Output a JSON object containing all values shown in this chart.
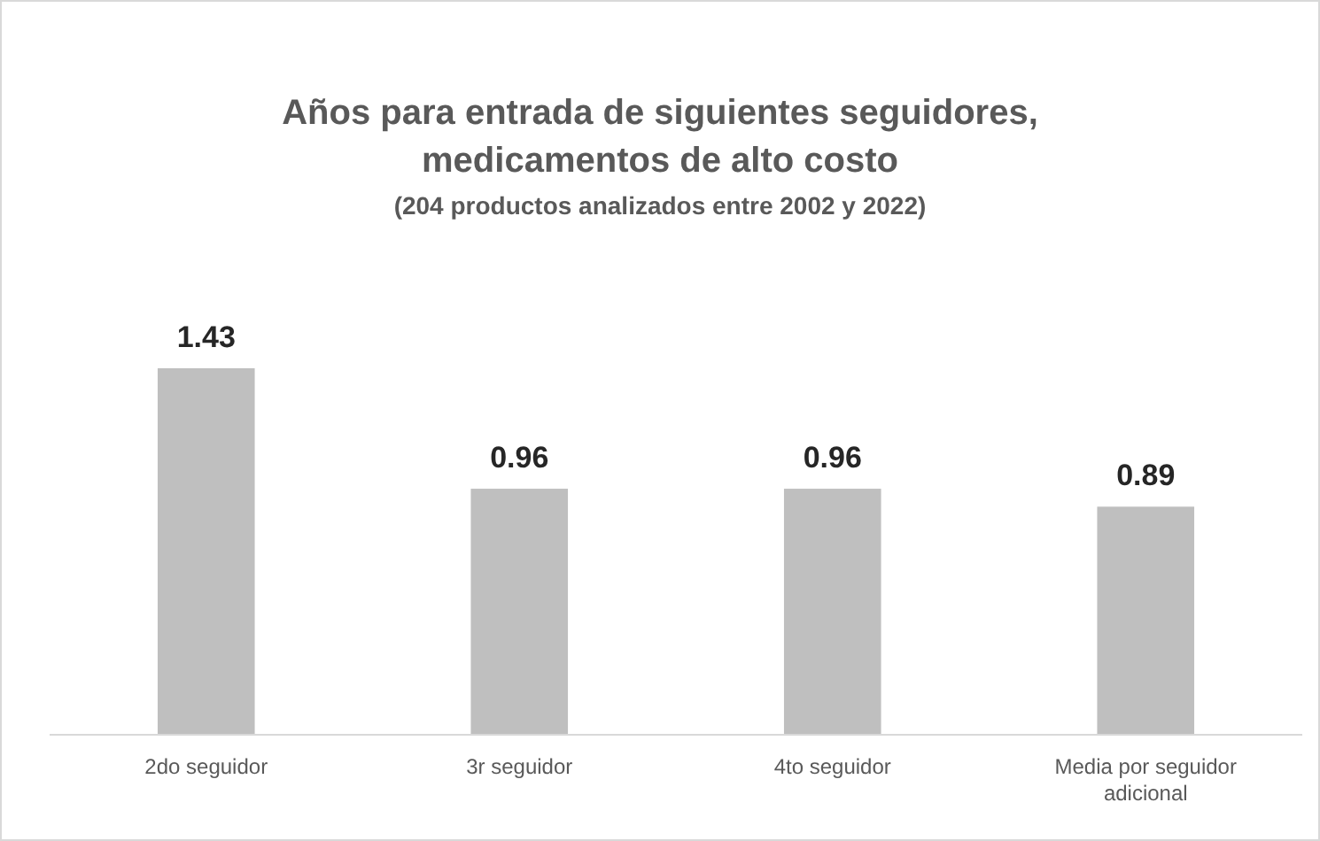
{
  "chart_data": {
    "type": "bar",
    "title": "Años para entrada de siguientes seguidores,\nmedicamentos de alto costo",
    "subtitle": "(204 productos analizados entre 2002 y 2022)",
    "categories": [
      "2do seguidor",
      "3r seguidor",
      "4to seguidor",
      "Media por seguidor adicional"
    ],
    "values": [
      1.43,
      0.96,
      0.96,
      0.89
    ],
    "color": "#bfbfbf",
    "data_labels": true
  }
}
